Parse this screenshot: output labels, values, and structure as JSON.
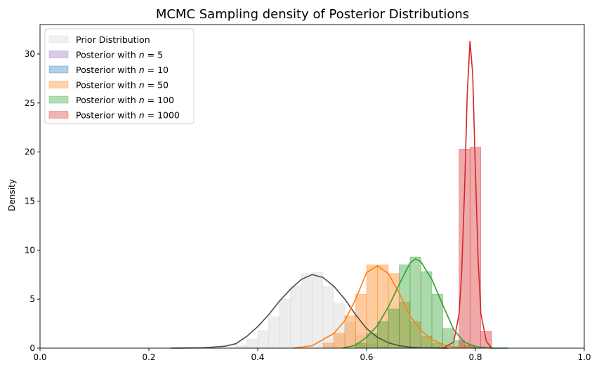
{
  "chart_data": {
    "type": "bar",
    "title": "MCMC Sampling density of Posterior Distributions",
    "xlabel": "",
    "ylabel": "Density",
    "xlim": [
      0.0,
      1.0
    ],
    "ylim": [
      0,
      33
    ],
    "xticks": [
      "0.0",
      "0.2",
      "0.4",
      "0.6",
      "0.8",
      "1.0"
    ],
    "yticks": [
      "0",
      "5",
      "10",
      "15",
      "20",
      "25",
      "30"
    ],
    "legend_position": "top-left",
    "grid": false,
    "series": [
      {
        "name": "Prior Distribution",
        "color": "#d3d3d3",
        "line_color": "#4d4d4d",
        "bins": [
          [
            0.36,
            0.38,
            0.3
          ],
          [
            0.38,
            0.4,
            0.9
          ],
          [
            0.4,
            0.42,
            1.8
          ],
          [
            0.42,
            0.44,
            3.2
          ],
          [
            0.44,
            0.46,
            5.0
          ],
          [
            0.46,
            0.48,
            6.3
          ],
          [
            0.48,
            0.5,
            7.6
          ],
          [
            0.5,
            0.52,
            7.7
          ],
          [
            0.52,
            0.54,
            6.3
          ],
          [
            0.54,
            0.56,
            4.6
          ],
          [
            0.56,
            0.58,
            2.6
          ],
          [
            0.58,
            0.6,
            1.3
          ],
          [
            0.6,
            0.62,
            0.4
          ],
          [
            0.62,
            0.64,
            0.2
          ]
        ],
        "kde": [
          [
            0.24,
            0.0
          ],
          [
            0.3,
            0.03
          ],
          [
            0.34,
            0.2
          ],
          [
            0.36,
            0.45
          ],
          [
            0.38,
            1.2
          ],
          [
            0.4,
            2.2
          ],
          [
            0.42,
            3.4
          ],
          [
            0.44,
            4.8
          ],
          [
            0.46,
            6.0
          ],
          [
            0.48,
            7.0
          ],
          [
            0.5,
            7.5
          ],
          [
            0.52,
            7.2
          ],
          [
            0.54,
            6.3
          ],
          [
            0.56,
            5.0
          ],
          [
            0.58,
            3.4
          ],
          [
            0.6,
            2.0
          ],
          [
            0.62,
            1.1
          ],
          [
            0.64,
            0.55
          ],
          [
            0.66,
            0.25
          ],
          [
            0.68,
            0.1
          ],
          [
            0.7,
            0.03
          ],
          [
            0.75,
            0.0
          ]
        ]
      },
      {
        "name": "Posterior with $n = 5$",
        "label_prefix": "Posterior with ",
        "label_var": "n",
        "label_value": " = 5",
        "color": "#9467bd",
        "line_color": "#9467bd",
        "bins": [],
        "kde": []
      },
      {
        "name": "Posterior with $n = 10$",
        "label_prefix": "Posterior with ",
        "label_var": "n",
        "label_value": " = 10",
        "color": "#1f77b4",
        "line_color": "#1f77b4",
        "bins": [],
        "kde": []
      },
      {
        "name": "Posterior with $n = 50$",
        "label_prefix": "Posterior with ",
        "label_var": "n",
        "label_value": " = 50",
        "color": "#ff7f0e",
        "line_color": "#ff7f0e",
        "bins": [
          [
            0.52,
            0.54,
            0.5
          ],
          [
            0.54,
            0.56,
            1.5
          ],
          [
            0.56,
            0.58,
            3.3
          ],
          [
            0.58,
            0.6,
            5.5
          ],
          [
            0.6,
            0.62,
            8.5
          ],
          [
            0.62,
            0.64,
            8.5
          ],
          [
            0.64,
            0.66,
            7.6
          ],
          [
            0.66,
            0.68,
            4.7
          ],
          [
            0.68,
            0.7,
            2.7
          ],
          [
            0.7,
            0.72,
            1.2
          ],
          [
            0.72,
            0.74,
            0.5
          ]
        ],
        "kde": [
          [
            0.465,
            0.0
          ],
          [
            0.5,
            0.25
          ],
          [
            0.54,
            1.5
          ],
          [
            0.56,
            2.8
          ],
          [
            0.58,
            5.0
          ],
          [
            0.6,
            7.7
          ],
          [
            0.62,
            8.4
          ],
          [
            0.64,
            7.6
          ],
          [
            0.66,
            5.6
          ],
          [
            0.68,
            3.3
          ],
          [
            0.7,
            1.8
          ],
          [
            0.72,
            0.9
          ],
          [
            0.74,
            0.35
          ],
          [
            0.76,
            0.12
          ],
          [
            0.8,
            0.0
          ]
        ]
      },
      {
        "name": "Posterior with $n = 100$",
        "label_prefix": "Posterior with ",
        "label_var": "n",
        "label_value": " = 100",
        "color": "#2ca02c",
        "line_color": "#2ca02c",
        "bins": [
          [
            0.58,
            0.6,
            0.5
          ],
          [
            0.6,
            0.62,
            1.5
          ],
          [
            0.62,
            0.64,
            2.7
          ],
          [
            0.64,
            0.66,
            4.0
          ],
          [
            0.66,
            0.68,
            8.5
          ],
          [
            0.68,
            0.7,
            9.3
          ],
          [
            0.7,
            0.72,
            7.8
          ],
          [
            0.72,
            0.74,
            5.5
          ],
          [
            0.74,
            0.76,
            2.0
          ],
          [
            0.76,
            0.78,
            0.8
          ],
          [
            0.78,
            0.8,
            0.3
          ]
        ],
        "kde": [
          [
            0.555,
            0.0
          ],
          [
            0.58,
            0.3
          ],
          [
            0.6,
            1.1
          ],
          [
            0.62,
            2.3
          ],
          [
            0.64,
            4.2
          ],
          [
            0.66,
            6.5
          ],
          [
            0.68,
            8.7
          ],
          [
            0.69,
            9.1
          ],
          [
            0.7,
            8.8
          ],
          [
            0.72,
            7.0
          ],
          [
            0.74,
            4.4
          ],
          [
            0.76,
            1.9
          ],
          [
            0.78,
            0.6
          ],
          [
            0.8,
            0.15
          ],
          [
            0.83,
            0.0
          ],
          [
            0.86,
            0.0
          ]
        ]
      },
      {
        "name": "Posterior with $n = 1000$",
        "label_prefix": "Posterior with ",
        "label_var": "n",
        "label_value": " = 1000",
        "color": "#d62728",
        "line_color": "#d62728",
        "bins": [
          [
            0.77,
            0.79,
            20.3
          ],
          [
            0.79,
            0.81,
            20.5
          ],
          [
            0.81,
            0.83,
            1.7
          ]
        ],
        "kde": [
          [
            0.74,
            0.0
          ],
          [
            0.76,
            0.6
          ],
          [
            0.77,
            3.5
          ],
          [
            0.775,
            8.0
          ],
          [
            0.78,
            16.0
          ],
          [
            0.785,
            26.0
          ],
          [
            0.79,
            31.3
          ],
          [
            0.795,
            28.0
          ],
          [
            0.8,
            18.0
          ],
          [
            0.805,
            9.0
          ],
          [
            0.81,
            3.5
          ],
          [
            0.82,
            0.7
          ],
          [
            0.83,
            0.0
          ]
        ]
      }
    ]
  }
}
